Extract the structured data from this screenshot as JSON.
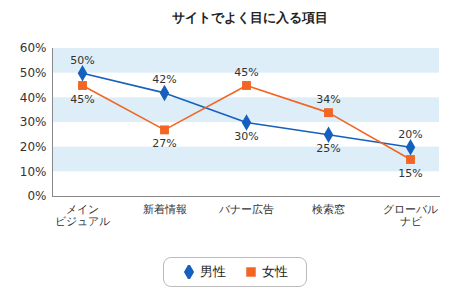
{
  "chart_data": {
    "type": "line",
    "title": "サイトでよく目に入る項目",
    "categories": [
      "メイン\nビジュアル",
      "新着情報",
      "バナー広告",
      "検索窓",
      "グローバル\nナビ"
    ],
    "series": [
      {
        "name": "男性",
        "color": "#1560bd",
        "marker": "diamond",
        "values": [
          50,
          42,
          30,
          25,
          20
        ],
        "value_labels": [
          "50%",
          "42%",
          "30%",
          "25%",
          "20%"
        ]
      },
      {
        "name": "女性",
        "color": "#f26522",
        "marker": "square",
        "values": [
          45,
          27,
          45,
          34,
          15
        ],
        "value_labels": [
          "45%",
          "27%",
          "45%",
          "34%",
          "15%"
        ]
      }
    ],
    "ylim": [
      0,
      60
    ],
    "yticks": [
      {
        "value": 0,
        "label": "0%"
      },
      {
        "value": 10,
        "label": "10%"
      },
      {
        "value": 20,
        "label": "20%"
      },
      {
        "value": 30,
        "label": "30%"
      },
      {
        "value": 40,
        "label": "40%"
      },
      {
        "value": 50,
        "label": "50%"
      },
      {
        "value": 60,
        "label": "60%"
      }
    ],
    "grid": true,
    "data_labels": true,
    "legend": "bottom"
  }
}
